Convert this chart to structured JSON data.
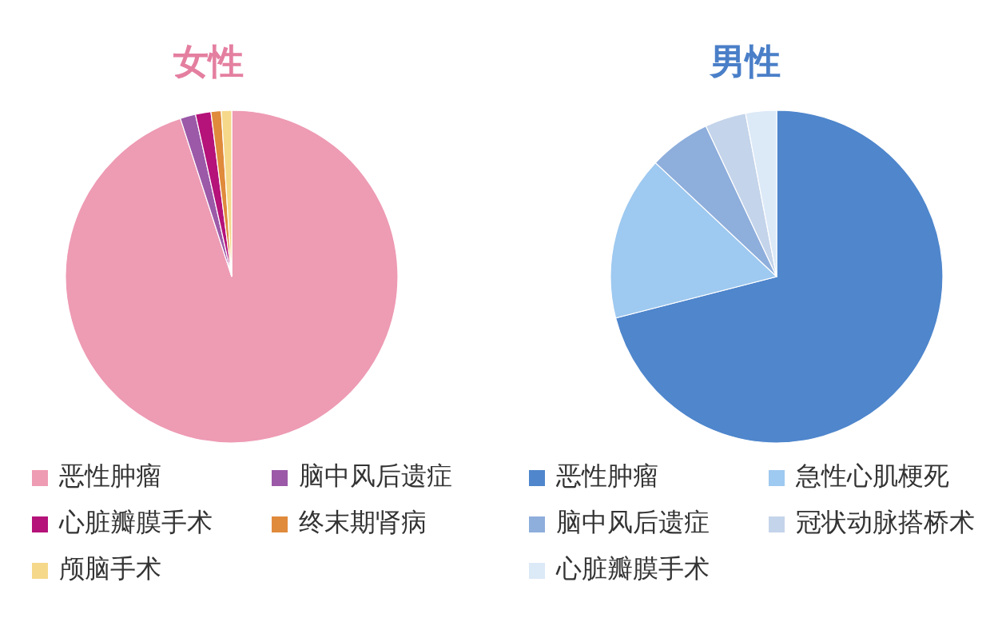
{
  "chart_data": [
    {
      "type": "pie",
      "title": "女性",
      "categories": [
        "恶性肿瘤",
        "脑中风后遗症",
        "心脏瓣膜手术",
        "终末期肾病",
        "颅脑手术"
      ],
      "values": [
        95,
        1.5,
        1.5,
        1,
        1
      ],
      "colors": [
        "#ee9bb4",
        "#9b59a8",
        "#b5127a",
        "#e08a3c",
        "#f5d88a"
      ],
      "legend": "bottom"
    },
    {
      "type": "pie",
      "title": "男性",
      "categories": [
        "恶性肿瘤",
        "急性心肌梗死",
        "脑中风后遗症",
        "冠状动脉搭桥术",
        "心脏瓣膜手术"
      ],
      "values": [
        71,
        16,
        6,
        4,
        3
      ],
      "colors": [
        "#4f86cc",
        "#9ec9f0",
        "#8eaedc",
        "#c4d4ea",
        "#dce9f7"
      ],
      "legend": "bottom"
    }
  ]
}
